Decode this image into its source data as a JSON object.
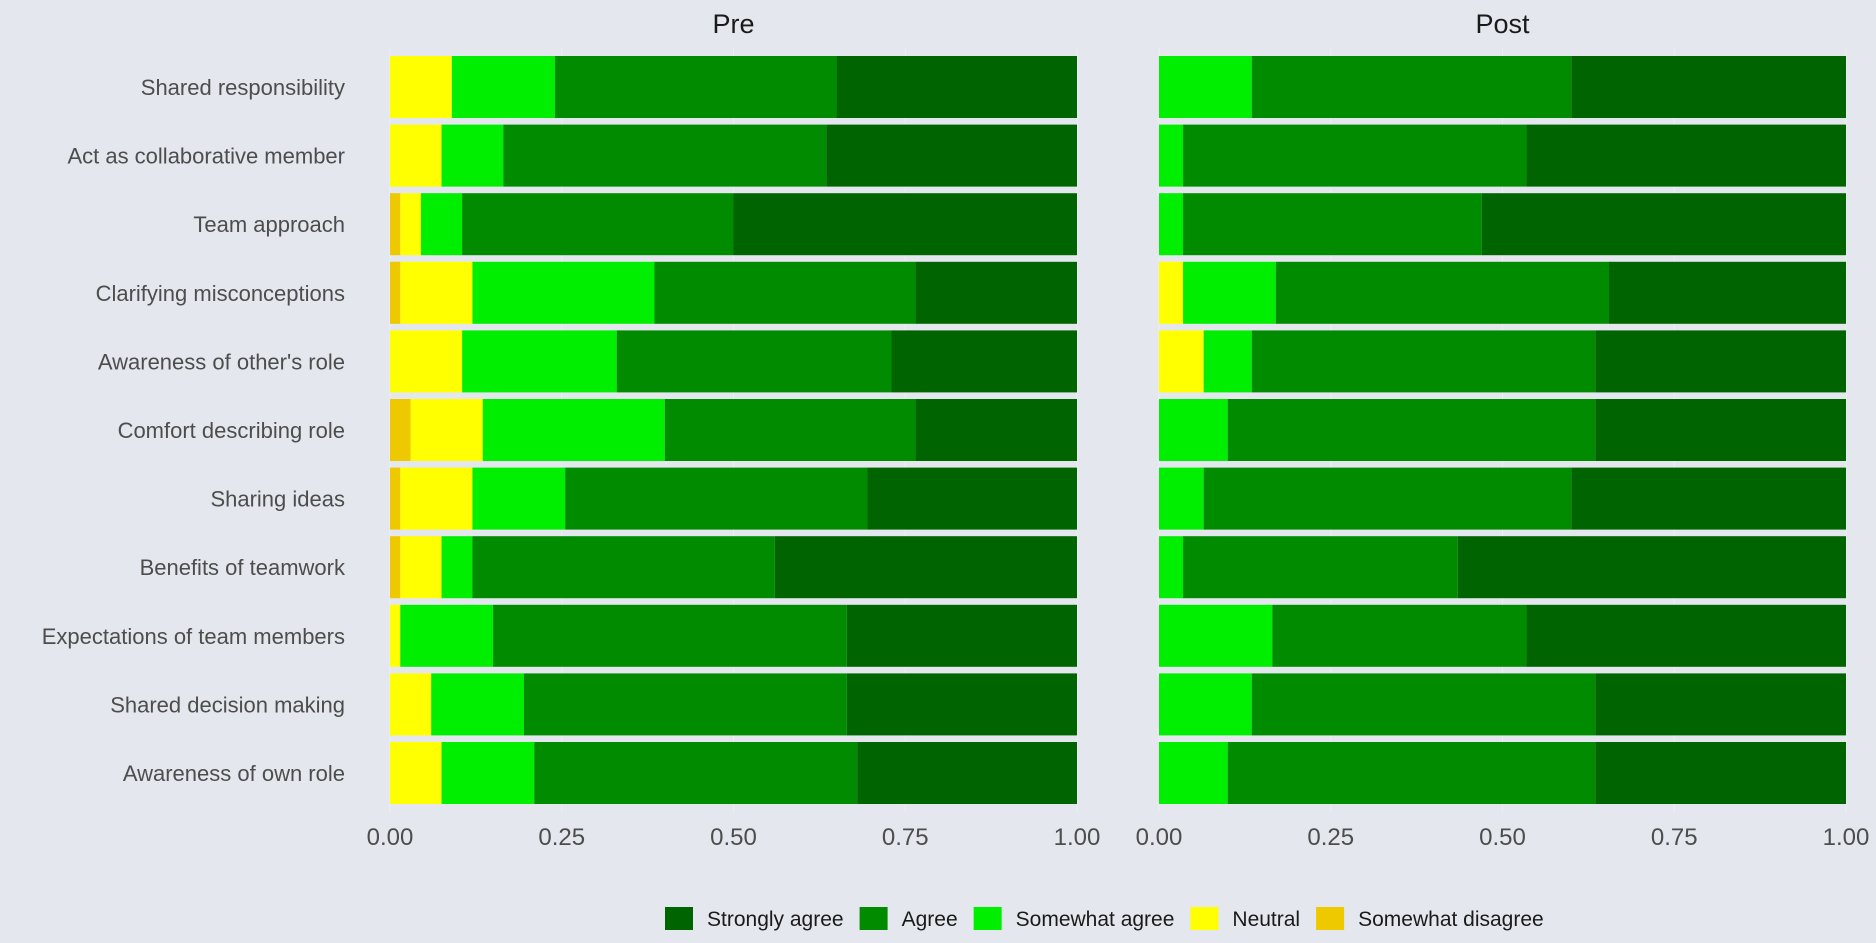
{
  "chart_data": {
    "type": "bar",
    "orientation": "horizontal",
    "stacked": true,
    "xlim": [
      0,
      1
    ],
    "x_ticks": [
      "0.00",
      "0.25",
      "0.50",
      "0.75",
      "1.00"
    ],
    "x_tick_values": [
      0,
      0.25,
      0.5,
      0.75,
      1
    ],
    "legend_position": "bottom",
    "categories": [
      "Shared responsibility",
      "Act as collaborative member",
      "Team approach",
      "Clarifying misconceptions",
      "Awareness of other's role",
      "Comfort describing role",
      "Sharing ideas",
      "Benefits of teamwork",
      "Expectations of team members",
      "Shared decision making",
      "Awareness of own role"
    ],
    "legend": [
      {
        "name": "Strongly agree",
        "color": "#006400"
      },
      {
        "name": "Agree",
        "color": "#008b00"
      },
      {
        "name": "Somewhat agree",
        "color": "#00ee00"
      },
      {
        "name": "Neutral",
        "color": "#ffff00"
      },
      {
        "name": "Somewhat disagree",
        "color": "#eec900"
      }
    ],
    "stack_order": [
      "Somewhat disagree",
      "Neutral",
      "Somewhat agree",
      "Agree",
      "Strongly agree"
    ],
    "panels": [
      {
        "title": "Pre",
        "series": [
          {
            "name": "Somewhat disagree",
            "values": [
              0,
              0,
              0.015,
              0.015,
              0,
              0.03,
              0.015,
              0.015,
              0,
              0,
              0
            ]
          },
          {
            "name": "Neutral",
            "values": [
              0.09,
              0.075,
              0.03,
              0.105,
              0.105,
              0.105,
              0.105,
              0.06,
              0.015,
              0.06,
              0.075
            ]
          },
          {
            "name": "Somewhat agree",
            "values": [
              0.15,
              0.09,
              0.06,
              0.265,
              0.225,
              0.265,
              0.135,
              0.045,
              0.135,
              0.135,
              0.135
            ]
          },
          {
            "name": "Agree",
            "values": [
              0.41,
              0.47,
              0.395,
              0.38,
              0.4,
              0.365,
              0.44,
              0.44,
              0.515,
              0.47,
              0.47
            ]
          },
          {
            "name": "Strongly agree",
            "values": [
              0.35,
              0.365,
              0.5,
              0.235,
              0.27,
              0.235,
              0.305,
              0.44,
              0.335,
              0.335,
              0.32
            ]
          }
        ]
      },
      {
        "title": "Post",
        "series": [
          {
            "name": "Somewhat disagree",
            "values": [
              0,
              0,
              0,
              0,
              0,
              0,
              0,
              0,
              0,
              0,
              0
            ]
          },
          {
            "name": "Neutral",
            "values": [
              0,
              0,
              0,
              0.035,
              0.065,
              0,
              0,
              0,
              0,
              0,
              0
            ]
          },
          {
            "name": "Somewhat agree",
            "values": [
              0.135,
              0.035,
              0.035,
              0.135,
              0.07,
              0.1,
              0.065,
              0.035,
              0.165,
              0.135,
              0.1
            ]
          },
          {
            "name": "Agree",
            "values": [
              0.465,
              0.5,
              0.435,
              0.485,
              0.5,
              0.535,
              0.535,
              0.4,
              0.37,
              0.5,
              0.535
            ]
          },
          {
            "name": "Strongly agree",
            "values": [
              0.4,
              0.465,
              0.53,
              0.345,
              0.365,
              0.365,
              0.4,
              0.565,
              0.465,
              0.365,
              0.365
            ]
          }
        ]
      }
    ]
  }
}
